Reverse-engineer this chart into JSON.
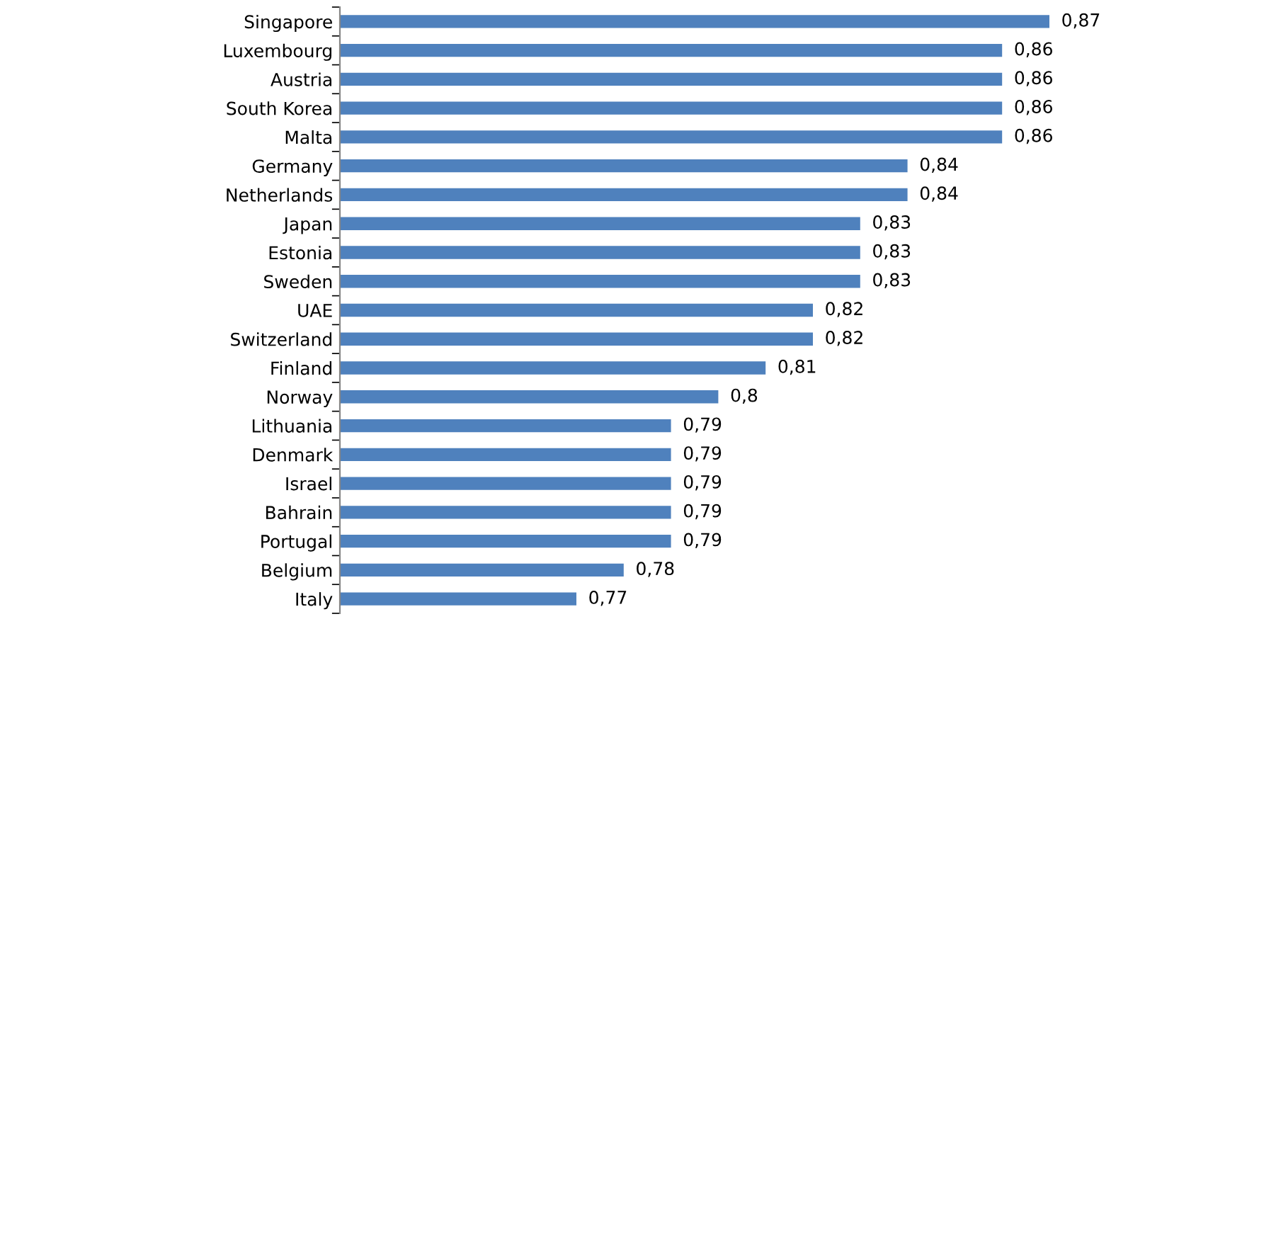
{
  "chart_data": {
    "type": "bar",
    "orientation": "horizontal",
    "categories": [
      "Singapore",
      "Luxembourg",
      "Austria",
      "South Korea",
      "Malta",
      "Germany",
      "Netherlands",
      "Japan",
      "Estonia",
      "Sweden",
      "UAE",
      "Switzerland",
      "Finland",
      "Norway",
      "Lithuania",
      "Denmark",
      "Israel",
      "Bahrain",
      "Portugal",
      "Belgium",
      "Italy"
    ],
    "values": [
      0.87,
      0.86,
      0.86,
      0.86,
      0.86,
      0.84,
      0.84,
      0.83,
      0.83,
      0.83,
      0.82,
      0.82,
      0.81,
      0.8,
      0.79,
      0.79,
      0.79,
      0.79,
      0.79,
      0.78,
      0.77
    ],
    "value_labels": [
      "0,87",
      "0,86",
      "0,86",
      "0,86",
      "0,86",
      "0,84",
      "0,84",
      "0,83",
      "0,83",
      "0,83",
      "0,82",
      "0,82",
      "0,81",
      "0,8",
      "0,79",
      "0,79",
      "0,79",
      "0,79",
      "0,79",
      "0,78",
      "0,77"
    ],
    "color": "#4f81bd",
    "xlim": [
      0.72,
      0.87
    ],
    "tick_labels": "y",
    "grid": false,
    "legend": false
  }
}
